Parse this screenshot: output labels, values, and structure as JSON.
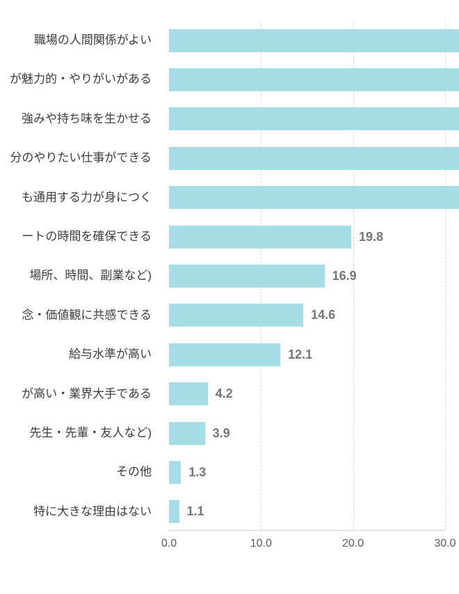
{
  "chart_data": {
    "type": "bar",
    "orientation": "horizontal",
    "title": "",
    "xlabel": "",
    "ylabel": "",
    "xlim": [
      0,
      30
    ],
    "grid": "vertical-dashed",
    "legend": "none",
    "x_ticks": [
      {
        "value": 0,
        "label": "0.0"
      },
      {
        "value": 10,
        "label": "10.0"
      },
      {
        "value": 20,
        "label": "20.0"
      },
      {
        "value": 30,
        "label": "30.0"
      }
    ],
    "bars": [
      {
        "category": "職場の人間関係がよい",
        "value": null,
        "label": "",
        "clipped": true
      },
      {
        "category": "が魅力的・やりがいがある",
        "value": null,
        "label": "",
        "clipped": true
      },
      {
        "category": "強みや持ち味を生かせる",
        "value": null,
        "label": "",
        "clipped": true
      },
      {
        "category": "分のやりたい仕事ができる",
        "value": null,
        "label": "",
        "clipped": true
      },
      {
        "category": "も通用する力が身につく",
        "value": null,
        "label": "",
        "clipped": true
      },
      {
        "category": "ートの時間を確保できる",
        "value": 19.8,
        "label": "19.8",
        "clipped": false
      },
      {
        "category": "場所、時間、副業など)",
        "value": 16.9,
        "label": "16.9",
        "clipped": false
      },
      {
        "category": "念・価値観に共感できる",
        "value": 14.6,
        "label": "14.6",
        "clipped": false
      },
      {
        "category": "給与水準が高い",
        "value": 12.1,
        "label": "12.1",
        "clipped": false
      },
      {
        "category": "が高い・業界大手である",
        "value": 4.2,
        "label": "4.2",
        "clipped": false
      },
      {
        "category": "先生・先輩・友人など)",
        "value": 3.9,
        "label": "3.9",
        "clipped": false
      },
      {
        "category": "その他",
        "value": 1.3,
        "label": "1.3",
        "clipped": false
      },
      {
        "category": "特に大きな理由はない",
        "value": 1.1,
        "label": "1.1",
        "clipped": false
      }
    ]
  },
  "style": {
    "background": "#ffffff",
    "bar_color": "#a5dde6",
    "value_label_color": "#757575",
    "category_color": "#3d3d3d",
    "tick_color": "#595959",
    "grid_color": "#d9d9d9",
    "axis_color": "#d0d0d0"
  }
}
